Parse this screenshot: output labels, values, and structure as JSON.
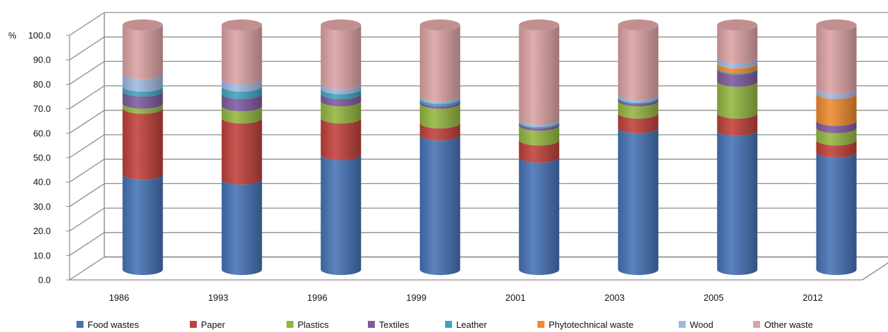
{
  "chart_data": {
    "type": "bar",
    "subtype": "stacked-cylinder-3d",
    "title": "",
    "xlabel": "",
    "ylabel": "%",
    "ylim": [
      0,
      100
    ],
    "yticks": [
      "0.0",
      "10.0",
      "20.0",
      "30.0",
      "40.0",
      "50.0",
      "60.0",
      "70.0",
      "80.0",
      "90.0",
      "100.0"
    ],
    "grid": true,
    "legend": "bottom",
    "categories": [
      "1986",
      "1993",
      "1996",
      "1999",
      "2001",
      "2003",
      "2005",
      "2012"
    ],
    "series": [
      {
        "name": "Food wastes",
        "color": "#4672b5",
        "values": [
          39,
          37,
          47,
          55,
          46,
          58,
          57,
          48
        ]
      },
      {
        "name": "Paper",
        "color": "#c0403a",
        "values": [
          27,
          25,
          15,
          5,
          7,
          6,
          7,
          5
        ]
      },
      {
        "name": "Plastics",
        "color": "#93b640",
        "values": [
          2,
          5,
          7,
          8,
          6,
          5,
          13,
          5
        ]
      },
      {
        "name": "Textiles",
        "color": "#7e5a9e",
        "values": [
          5,
          5,
          3,
          1,
          1,
          1,
          5,
          3
        ]
      },
      {
        "name": "Leather",
        "color": "#3fa3bf",
        "values": [
          2,
          3,
          2,
          1,
          0.5,
          0.5,
          0.5,
          0
        ]
      },
      {
        "name": "Phytotechnical waste",
        "color": "#ee8a2e",
        "values": [
          0,
          0,
          0,
          0,
          0,
          0,
          2,
          11
        ]
      },
      {
        "name": "Wood",
        "color": "#9fb8e0",
        "values": [
          5,
          3,
          2,
          1,
          1,
          1,
          2,
          2
        ]
      },
      {
        "name": "Other waste",
        "color": "#dca2a4",
        "values": [
          20,
          22,
          24,
          29,
          38.5,
          28.5,
          13.5,
          26
        ]
      }
    ]
  }
}
